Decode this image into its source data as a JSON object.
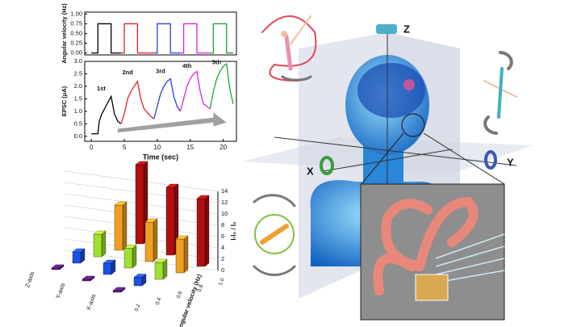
{
  "chart_data": [
    {
      "type": "line",
      "ylabel": "Angular velocity (Hz)",
      "xlim": [
        -1,
        22
      ],
      "ylim": [
        -0.05,
        1.05
      ],
      "yticks": [
        {
          "value": 0,
          "label": "0.00"
        },
        {
          "value": 0.25,
          "label": "0.25"
        },
        {
          "value": 0.5,
          "label": "0.50"
        },
        {
          "value": 0.75,
          "label": "0.75"
        },
        {
          "value": 1,
          "label": "1.00"
        }
      ],
      "series": [
        {
          "color": "#000000",
          "x": [
            0,
            1,
            1,
            3,
            3,
            4.5
          ],
          "values": [
            0,
            0,
            0.75,
            0.75,
            0,
            0
          ]
        },
        {
          "color": "#e8202a",
          "x": [
            4.5,
            5,
            5,
            7,
            7,
            9.5
          ],
          "values": [
            0,
            0,
            0.75,
            0.75,
            0,
            0
          ]
        },
        {
          "color": "#2a3ee0",
          "x": [
            9.5,
            10,
            10,
            12,
            12,
            13.5
          ],
          "values": [
            0,
            0,
            0.75,
            0.75,
            0,
            0
          ]
        },
        {
          "color": "#e020e0",
          "x": [
            13.5,
            14,
            14,
            16,
            16,
            18
          ],
          "values": [
            0,
            0,
            0.75,
            0.75,
            0,
            0
          ]
        },
        {
          "color": "#20a030",
          "x": [
            18,
            18.5,
            18.5,
            20.5,
            20.5,
            21.5
          ],
          "values": [
            0,
            0,
            0.75,
            0.75,
            0,
            0
          ]
        }
      ]
    },
    {
      "type": "line",
      "ylabel": "EPSC (μA)",
      "xlabel": "Time (sec)",
      "xlim": [
        -1,
        22
      ],
      "ylim": [
        -0.2,
        3.0
      ],
      "xticks": [
        0,
        5,
        10,
        15,
        20
      ],
      "yticks": [
        {
          "value": 0,
          "label": "0.0"
        },
        {
          "value": 0.5,
          "label": "0.5"
        },
        {
          "value": 1,
          "label": "1.0"
        },
        {
          "value": 1.5,
          "label": "1.5"
        },
        {
          "value": 2,
          "label": "2.0"
        },
        {
          "value": 2.5,
          "label": "2.5"
        },
        {
          "value": 3,
          "label": "3.0"
        }
      ],
      "annotations": [
        "1st",
        "2nd",
        "3rd",
        "4th",
        "5th"
      ],
      "series": [
        {
          "color": "#000000",
          "x": [
            0,
            1,
            1.2,
            1.6,
            2,
            2.4,
            2.8,
            3,
            3.5,
            4,
            4.5
          ],
          "values": [
            0.1,
            0.1,
            0.6,
            0.9,
            1.1,
            1.3,
            1.5,
            1.6,
            0.9,
            0.6,
            0.5
          ]
        },
        {
          "color": "#e8202a",
          "x": [
            4.5,
            5,
            5.5,
            6,
            6.5,
            7,
            7.5,
            8,
            9,
            9.5
          ],
          "values": [
            0.5,
            0.9,
            1.5,
            1.8,
            2.0,
            2.2,
            1.5,
            1.1,
            0.8,
            0.7
          ]
        },
        {
          "color": "#2a3ee0",
          "x": [
            9.5,
            10,
            10.5,
            11,
            11.5,
            12,
            12.5,
            13,
            13.5
          ],
          "values": [
            0.7,
            1.2,
            1.7,
            2.0,
            2.2,
            2.3,
            1.6,
            1.2,
            1.0
          ]
        },
        {
          "color": "#e020e0",
          "x": [
            13.5,
            14,
            14.5,
            15,
            15.5,
            16,
            16.5,
            17,
            18
          ],
          "values": [
            1.0,
            1.5,
            2.0,
            2.3,
            2.5,
            2.6,
            1.8,
            1.3,
            1.1
          ]
        },
        {
          "color": "#20a030",
          "x": [
            18,
            18.5,
            19,
            19.5,
            20,
            20.5,
            21,
            21.5
          ],
          "values": [
            1.1,
            1.8,
            2.3,
            2.6,
            2.8,
            2.9,
            1.9,
            1.3
          ]
        }
      ]
    },
    {
      "type": "bar3d",
      "zlabel": "I-I₀ / I₀",
      "xlabel": "Angular velocity (Hz)",
      "categories": [
        "X-axis",
        "Y-axis",
        "Z-axis"
      ],
      "zlim": [
        0,
        14
      ],
      "zticks": [
        0,
        2,
        4,
        6,
        8,
        10,
        12,
        14
      ],
      "series": [
        {
          "name": "0.2",
          "color": "#5b1a7a",
          "values": [
            0.3,
            0.3,
            0.3
          ]
        },
        {
          "name": "0.4",
          "color": "#2050e0",
          "values": [
            1.5,
            2,
            2
          ]
        },
        {
          "name": "0.6",
          "color": "#a0e030",
          "values": [
            3,
            3.5,
            4
          ]
        },
        {
          "name": "0.8",
          "color": "#f0a020",
          "values": [
            6,
            7,
            8
          ]
        },
        {
          "name": "1.0",
          "color": "#b01010",
          "values": [
            12,
            12,
            14
          ]
        }
      ]
    }
  ],
  "illustration": {
    "axis_labels": [
      "X",
      "Y",
      "Z"
    ]
  }
}
